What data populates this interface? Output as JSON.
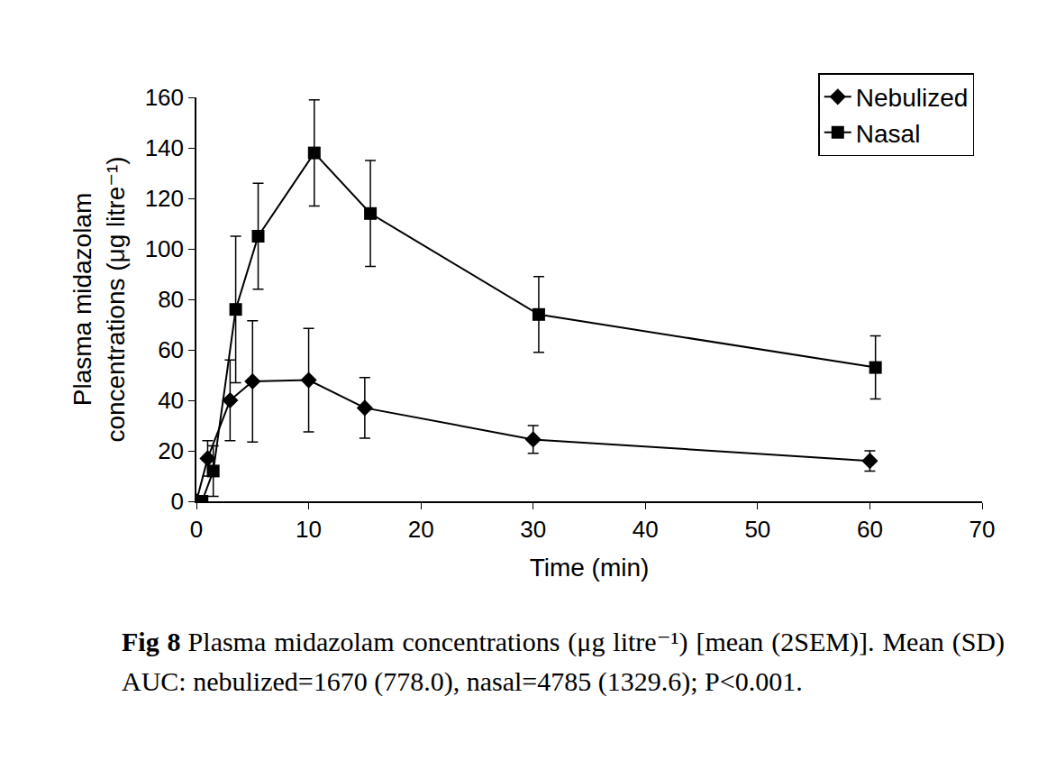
{
  "chart_data": {
    "type": "line",
    "ylabel": [
      "Plasma midazolam",
      "concentrations (μg litre⁻¹)"
    ],
    "xlabel": "Time (min)",
    "caption_label": "Fig 8",
    "caption": "Plasma midazolam concentrations (μg litre⁻¹) [mean (2SEM)]. Mean (SD) AUC: nebulized=1670 (778.0), nasal=4785 (1329.6); P<0.001.",
    "xlim": [
      0,
      70
    ],
    "xticks": [
      0,
      10,
      20,
      30,
      40,
      50,
      60,
      70
    ],
    "ylim": [
      0,
      160
    ],
    "yticks": [
      0,
      20,
      40,
      60,
      80,
      100,
      120,
      140,
      160
    ],
    "grid": false,
    "legend": "top right",
    "series": [
      {
        "name": "Nebulized",
        "color": "#000000",
        "marker": "diamond",
        "x": [
          0,
          1,
          3,
          5,
          10,
          15,
          30,
          60
        ],
        "values": [
          0,
          17,
          40,
          47.5,
          48,
          37,
          24.5,
          16
        ],
        "error": [
          0,
          7,
          16,
          24,
          20.5,
          12,
          5.5,
          4
        ]
      },
      {
        "name": "Nasal",
        "color": "#000000",
        "marker": "square",
        "x": [
          0.5,
          1.5,
          3.5,
          5.5,
          10.5,
          15.5,
          30.5,
          60.5
        ],
        "values": [
          0,
          12,
          76,
          105,
          138,
          114,
          74,
          53
        ],
        "error": [
          0,
          10,
          29,
          21,
          21,
          21,
          15,
          12.5
        ]
      }
    ]
  }
}
